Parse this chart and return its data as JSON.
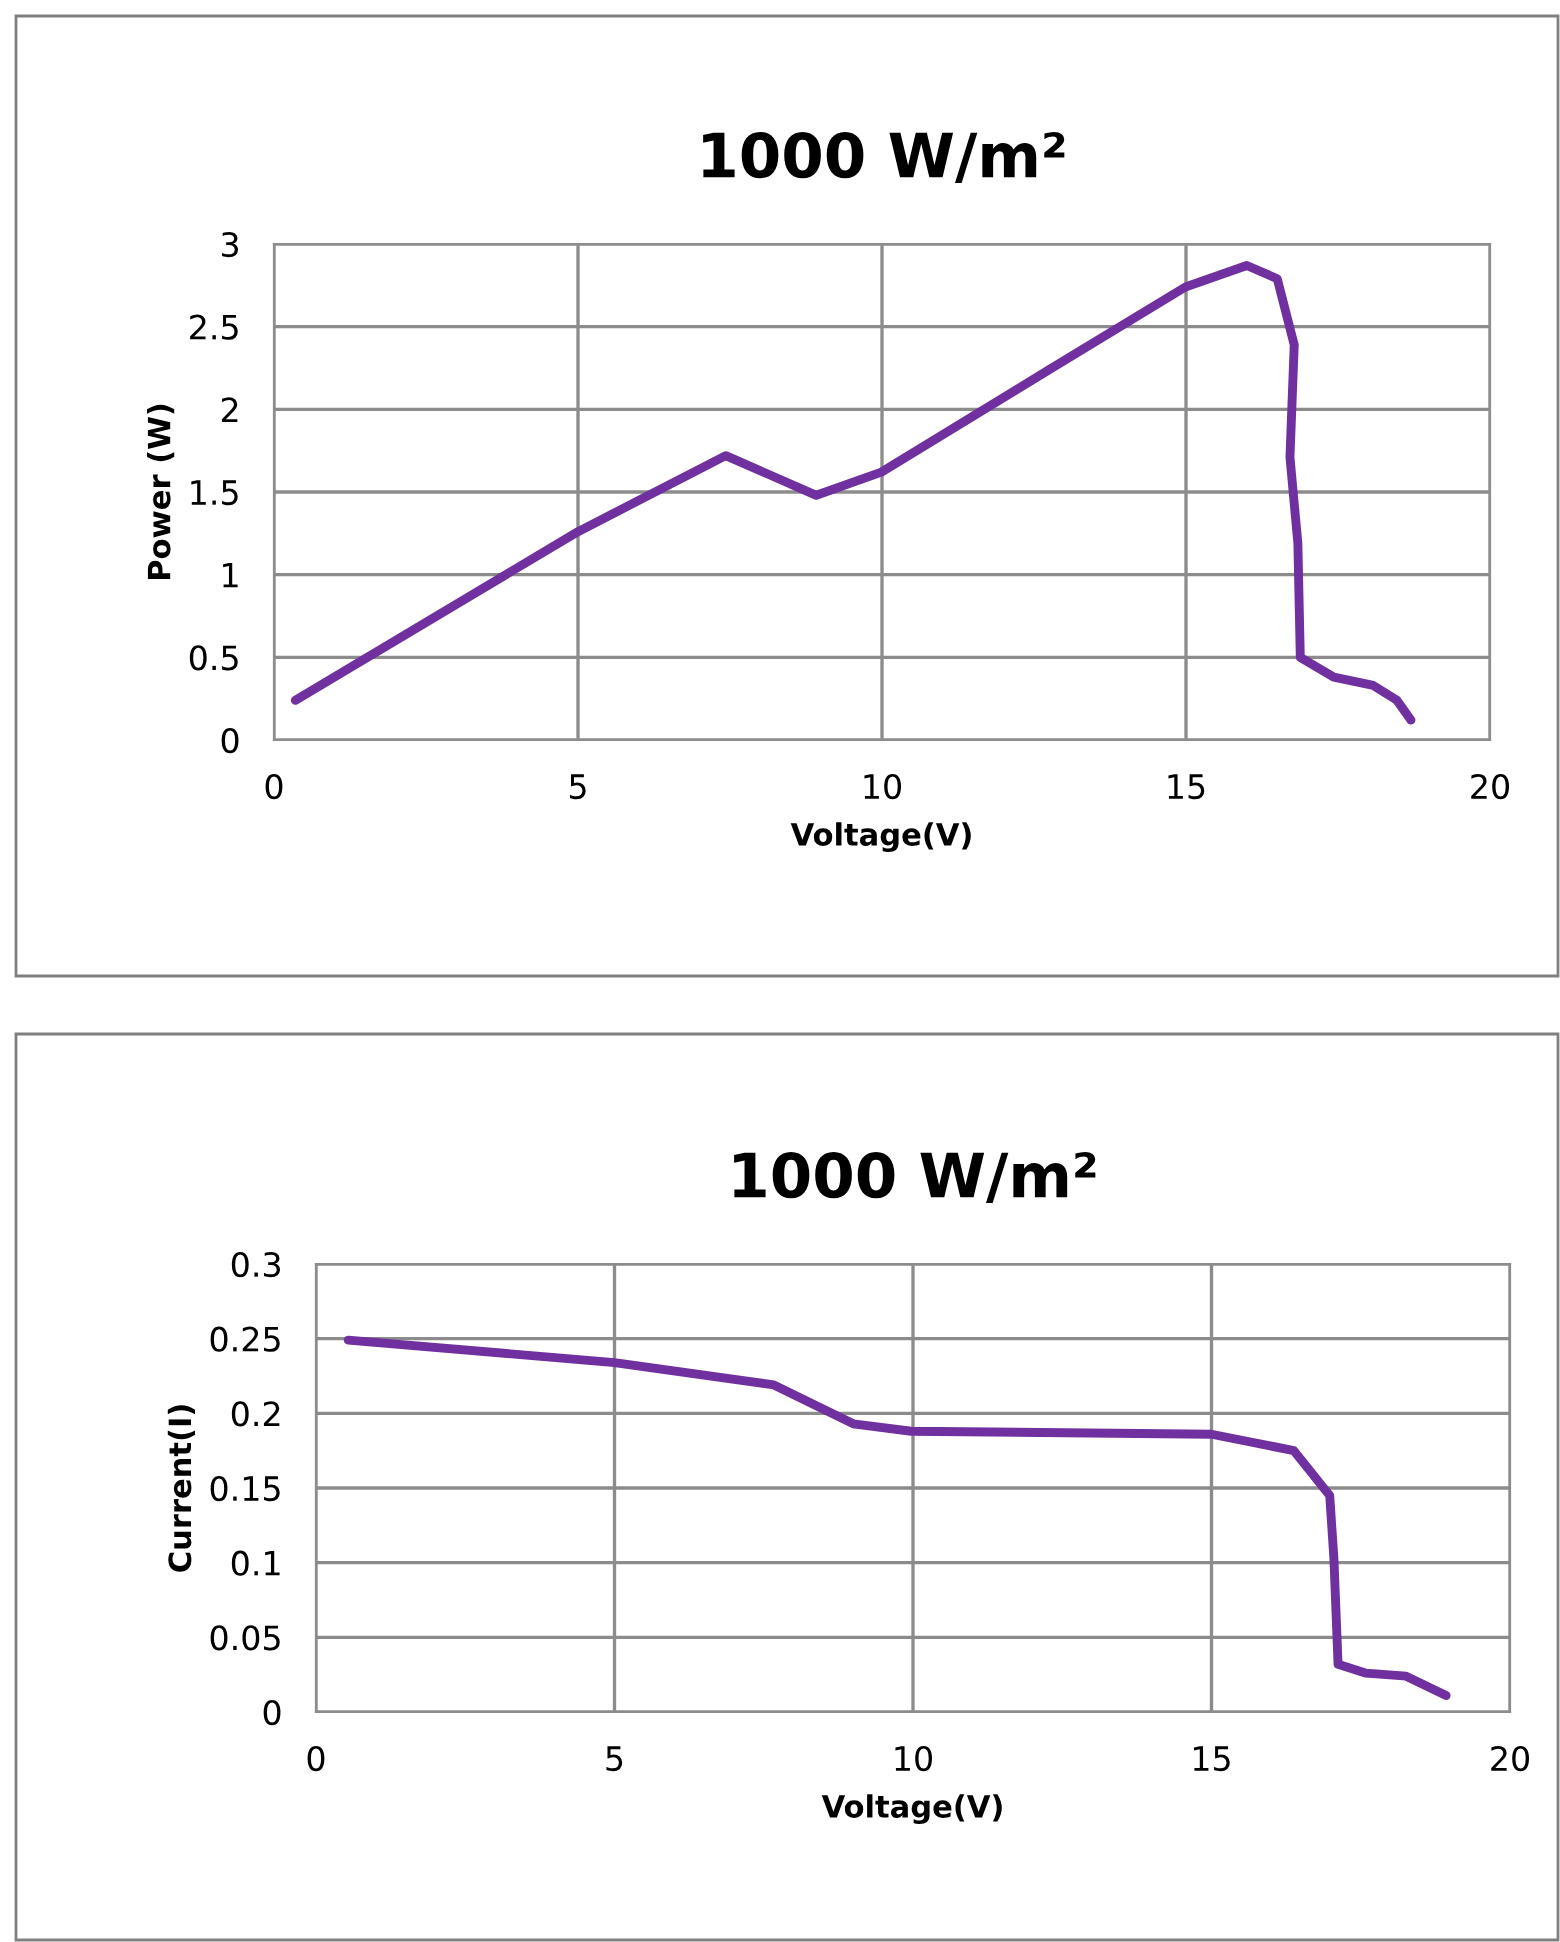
{
  "chart_data": [
    {
      "type": "line",
      "title": "1000 W/m²",
      "xlabel": "Voltage(V)",
      "ylabel": "Power (W)",
      "xlim": [
        0,
        20
      ],
      "xticks": [
        0,
        5,
        10,
        15,
        20
      ],
      "ylim": [
        0,
        3
      ],
      "yticks": [
        0,
        0.5,
        1,
        1.5,
        2,
        2.5,
        3
      ],
      "grid": true,
      "legend": false,
      "series": [
        {
          "color": "#7030a0",
          "x": [
            0.35,
            5,
            7.43,
            8.92,
            9.99,
            12.75,
            14.99,
            16.0,
            16.5,
            16.78,
            16.71,
            16.84,
            16.88,
            17.43,
            18.08,
            18.47,
            18.7
          ],
          "values": [
            0.24,
            1.26,
            1.72,
            1.48,
            1.62,
            2.24,
            2.74,
            2.87,
            2.79,
            2.39,
            1.71,
            1.19,
            0.5,
            0.38,
            0.33,
            0.24,
            0.12
          ]
        }
      ]
    },
    {
      "type": "line",
      "title": "1000 W/m²",
      "xlabel": "Voltage(V)",
      "ylabel": "Current(I)",
      "xlim": [
        0,
        20
      ],
      "xticks": [
        0,
        5,
        10,
        15,
        20
      ],
      "ylim": [
        0,
        0.3
      ],
      "yticks": [
        0,
        0.05,
        0.1,
        0.15,
        0.2,
        0.25,
        0.3
      ],
      "grid": true,
      "legend": false,
      "series": [
        {
          "color": "#7030a0",
          "x": [
            0.54,
            5,
            7.67,
            9.0,
            9.97,
            15,
            16.38,
            16.98,
            17.05,
            17.12,
            17.59,
            18.26,
            18.93
          ],
          "values": [
            0.249,
            0.234,
            0.219,
            0.193,
            0.188,
            0.186,
            0.175,
            0.145,
            0.103,
            0.032,
            0.026,
            0.024,
            0.011
          ]
        }
      ]
    }
  ]
}
